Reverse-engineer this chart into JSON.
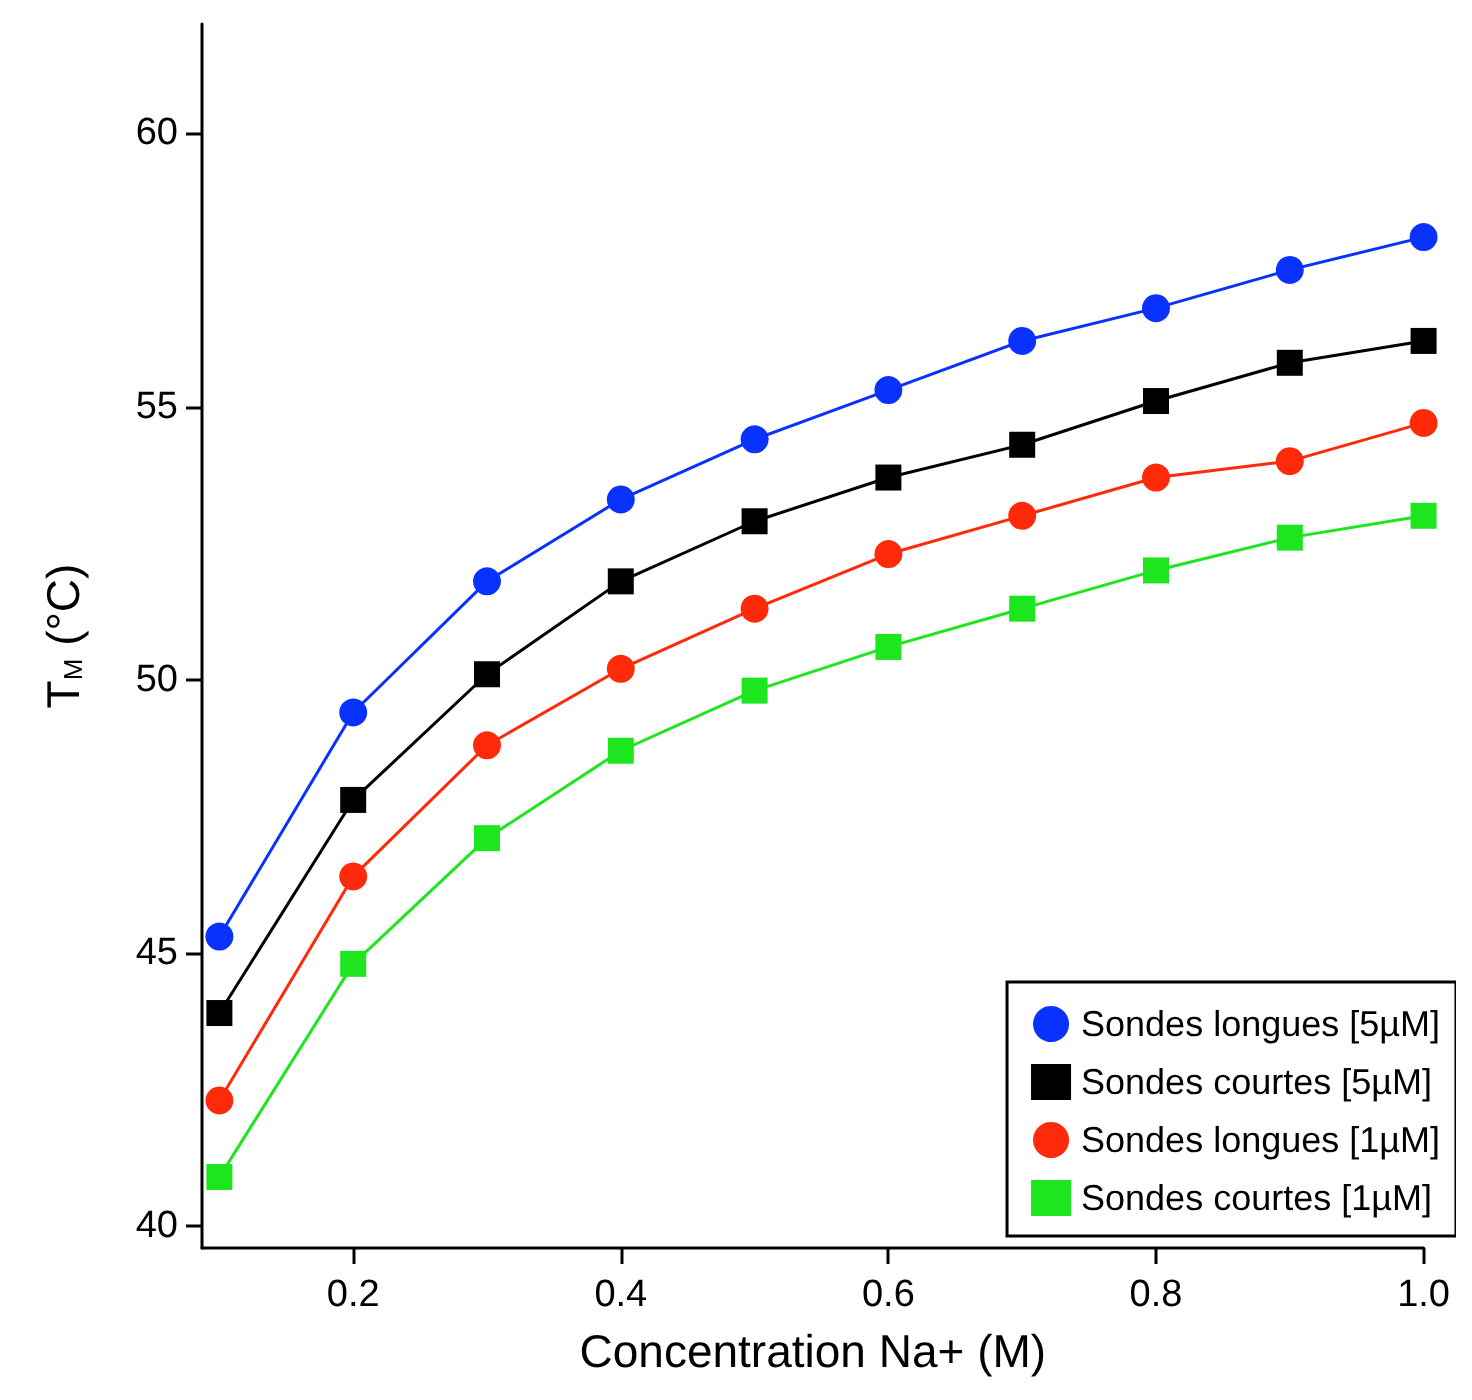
{
  "chart_data": {
    "type": "line",
    "xlabel": "Concentration Na+ (M)",
    "ylabel": "T$_{M}$ (°C)",
    "x": [
      0.1,
      0.2,
      0.3,
      0.4,
      0.5,
      0.6,
      0.7,
      0.8,
      0.9,
      1.0
    ],
    "series": [
      {
        "name": "Sondes longues [5µM]",
        "color": "#0a32ff",
        "marker": "circle",
        "values": [
          45.3,
          49.4,
          51.8,
          53.3,
          54.4,
          55.3,
          56.2,
          56.8,
          57.5,
          58.1
        ]
      },
      {
        "name": "Sondes courtes [5µM]",
        "color": "#000000",
        "marker": "square",
        "values": [
          43.9,
          47.8,
          50.1,
          51.8,
          52.9,
          53.7,
          54.3,
          55.1,
          55.8,
          56.2
        ]
      },
      {
        "name": "Sondes longues [1µM]",
        "color": "#ff2a0a",
        "marker": "circle",
        "values": [
          42.3,
          46.4,
          48.8,
          50.2,
          51.3,
          52.3,
          53.0,
          53.7,
          54.0,
          54.7
        ]
      },
      {
        "name": "Sondes courtes [1µM]",
        "color": "#1ee61e",
        "marker": "square",
        "values": [
          40.9,
          44.8,
          47.1,
          48.7,
          49.8,
          50.6,
          51.3,
          52.0,
          52.6,
          53.0
        ]
      }
    ],
    "xlim": [
      0.087,
      1.0
    ],
    "xticks": [
      0.2,
      0.4,
      0.6,
      0.8,
      {
        "value": 1.0,
        "label": "1.0"
      }
    ],
    "ylim": [
      39.6,
      62
    ],
    "yticks": [
      40,
      45,
      50,
      55,
      60
    ],
    "grid": false,
    "legend": "bottom right",
    "line_style": "solid"
  }
}
